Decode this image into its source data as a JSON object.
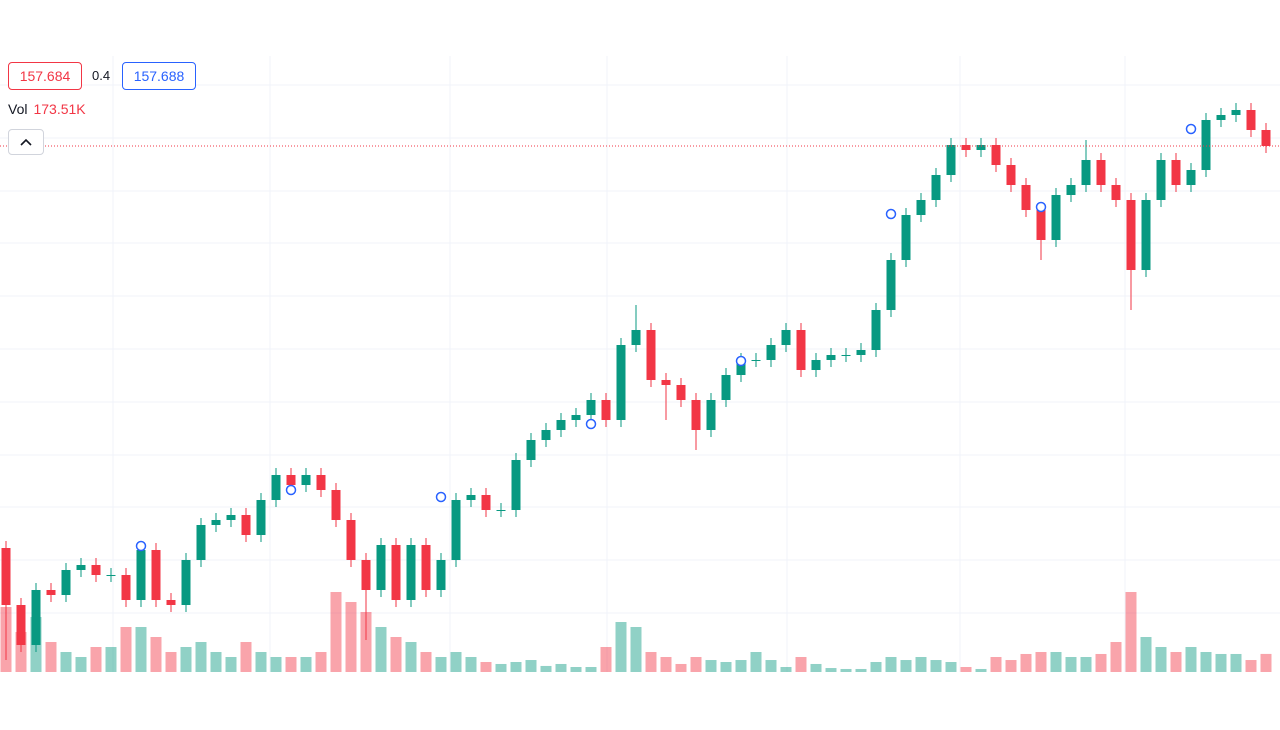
{
  "chart_data": {
    "type": "candlestick",
    "bid": 157.684,
    "spread": 0.4,
    "ask": 157.688,
    "volume_name": "Vol",
    "volume_value_label": "173.51K",
    "up_color": "#089981",
    "down_color": "#f23645",
    "marker_color": "#2962ff",
    "ylim": [
      156.632,
      157.864
    ],
    "volume_ylim": [
      0,
      5913.6
    ],
    "open": [
      156.88,
      156.766,
      156.686,
      156.796,
      156.786,
      156.836,
      156.846,
      156.826,
      156.826,
      156.776,
      156.876,
      156.776,
      156.766,
      156.856,
      156.926,
      156.936,
      156.946,
      156.906,
      156.976,
      157.026,
      157.006,
      157.026,
      156.996,
      156.936,
      156.856,
      156.796,
      156.886,
      156.776,
      156.886,
      156.796,
      156.856,
      156.976,
      156.986,
      156.956,
      156.956,
      157.056,
      157.096,
      157.116,
      157.136,
      157.146,
      157.176,
      157.136,
      157.286,
      157.316,
      157.216,
      157.206,
      157.176,
      157.116,
      157.176,
      157.226,
      157.256,
      157.256,
      157.286,
      157.316,
      157.236,
      157.256,
      157.266,
      157.266,
      157.276,
      157.356,
      157.456,
      157.546,
      157.576,
      157.626,
      157.686,
      157.676,
      157.686,
      157.646,
      157.606,
      157.556,
      157.496,
      157.586,
      157.606,
      157.656,
      157.606,
      157.576,
      157.436,
      157.576,
      157.656,
      157.606,
      157.636,
      157.736,
      157.746,
      157.756,
      157.716
    ],
    "high": [
      156.894,
      156.78,
      156.81,
      156.81,
      156.85,
      156.86,
      156.86,
      156.84,
      156.84,
      156.89,
      156.89,
      156.79,
      156.87,
      156.94,
      156.95,
      156.96,
      156.96,
      156.99,
      157.04,
      157.04,
      157.04,
      157.04,
      157.01,
      156.95,
      156.87,
      156.9,
      156.9,
      156.9,
      156.9,
      156.87,
      156.99,
      157.0,
      157.0,
      156.97,
      157.07,
      157.11,
      157.13,
      157.15,
      157.16,
      157.19,
      157.19,
      157.3,
      157.366,
      157.33,
      157.23,
      157.22,
      157.19,
      157.19,
      157.24,
      157.27,
      157.27,
      157.3,
      157.33,
      157.33,
      157.27,
      157.28,
      157.28,
      157.29,
      157.37,
      157.47,
      157.56,
      157.59,
      157.64,
      157.7,
      157.7,
      157.7,
      157.7,
      157.66,
      157.62,
      157.57,
      157.6,
      157.62,
      157.696,
      157.67,
      157.62,
      157.59,
      157.59,
      157.67,
      157.67,
      157.65,
      157.75,
      157.76,
      157.77,
      157.77,
      157.73
    ],
    "low": [
      156.656,
      156.672,
      156.672,
      156.772,
      156.772,
      156.822,
      156.812,
      156.812,
      156.762,
      156.762,
      156.762,
      156.752,
      156.752,
      156.842,
      156.912,
      156.922,
      156.892,
      156.892,
      156.962,
      156.992,
      156.992,
      156.982,
      156.922,
      156.842,
      156.696,
      156.782,
      156.762,
      156.762,
      156.782,
      156.782,
      156.842,
      156.962,
      156.942,
      156.942,
      156.942,
      157.042,
      157.082,
      157.102,
      157.122,
      157.132,
      157.122,
      157.122,
      157.272,
      157.202,
      157.136,
      157.162,
      157.076,
      157.102,
      157.162,
      157.212,
      157.242,
      157.242,
      157.272,
      157.222,
      157.222,
      157.242,
      157.252,
      157.252,
      157.262,
      157.342,
      157.442,
      157.532,
      157.562,
      157.612,
      157.662,
      157.662,
      157.632,
      157.592,
      157.542,
      157.456,
      157.482,
      157.572,
      157.592,
      157.592,
      157.562,
      157.356,
      157.422,
      157.562,
      157.592,
      157.592,
      157.622,
      157.722,
      157.732,
      157.702,
      157.67
    ],
    "close": [
      156.766,
      156.686,
      156.796,
      156.786,
      156.836,
      156.846,
      156.826,
      156.826,
      156.776,
      156.876,
      156.776,
      156.766,
      156.856,
      156.926,
      156.936,
      156.946,
      156.906,
      156.976,
      157.026,
      157.006,
      157.026,
      156.996,
      156.936,
      156.856,
      156.796,
      156.886,
      156.776,
      156.886,
      156.796,
      156.856,
      156.976,
      156.986,
      156.956,
      156.956,
      157.056,
      157.096,
      157.116,
      157.136,
      157.146,
      157.176,
      157.136,
      157.286,
      157.316,
      157.216,
      157.206,
      157.176,
      157.116,
      157.176,
      157.226,
      157.256,
      157.256,
      157.286,
      157.316,
      157.236,
      157.256,
      157.266,
      157.266,
      157.276,
      157.356,
      157.456,
      157.546,
      157.576,
      157.626,
      157.686,
      157.676,
      157.686,
      157.646,
      157.606,
      157.556,
      157.496,
      157.586,
      157.606,
      157.656,
      157.606,
      157.576,
      157.436,
      157.576,
      157.656,
      157.606,
      157.636,
      157.736,
      157.746,
      157.756,
      157.716,
      157.684
    ],
    "volume": [
      624,
      384,
      528,
      288,
      192,
      144,
      240,
      240,
      432,
      432,
      336,
      192,
      240,
      288,
      192,
      144,
      288,
      192,
      144,
      144,
      144,
      192,
      768,
      672,
      576,
      432,
      336,
      288,
      192,
      144,
      192,
      144,
      96,
      77,
      96,
      115,
      58,
      77,
      48,
      48,
      240,
      480,
      432,
      192,
      144,
      77,
      144,
      115,
      96,
      115,
      192,
      115,
      48,
      144,
      77,
      38,
      29,
      29,
      96,
      144,
      115,
      144,
      115,
      96,
      48,
      29,
      144,
      115,
      173,
      192,
      192,
      144,
      144,
      173,
      288,
      768,
      336,
      240,
      192,
      240,
      192,
      173,
      173,
      115,
      173.51
    ],
    "marker_index": [
      9,
      19,
      29,
      39,
      49,
      59,
      69,
      79
    ],
    "marker_values": [
      156.884,
      156.996,
      156.982,
      157.128,
      157.254,
      157.548,
      157.562,
      157.718
    ]
  }
}
